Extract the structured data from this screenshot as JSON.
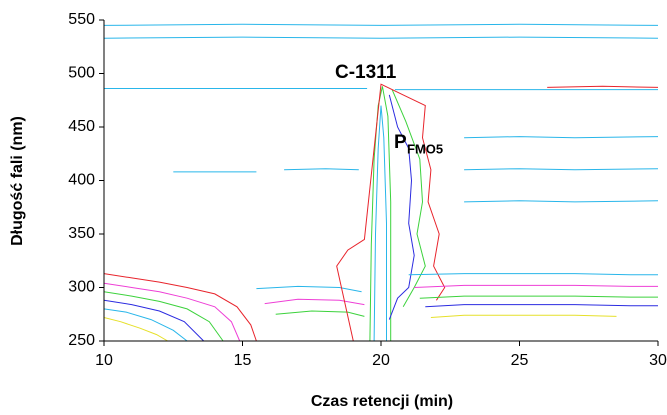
{
  "chart_data": {
    "type": "contour",
    "xlabel": "Czas retencji (min)",
    "ylabel": "Długość fali (nm)",
    "annotations": [
      {
        "text": "C-1311"
      },
      {
        "text": "P",
        "subscript": "FMO5"
      }
    ],
    "xlim": [
      10,
      30
    ],
    "xticks": [
      10,
      15,
      20,
      25,
      30
    ],
    "ylim": [
      250,
      550
    ],
    "yticks": [
      250,
      300,
      350,
      400,
      450,
      500,
      550
    ],
    "grid": false,
    "contours": [
      {
        "color": "#e8242c",
        "x": [
          10,
          11,
          12,
          13,
          14,
          14.8,
          15.3,
          15.5
        ],
        "y": [
          313,
          309,
          305,
          300,
          294,
          282,
          265,
          250
        ]
      },
      {
        "color": "#ee3fd6",
        "x": [
          10,
          11,
          12,
          13,
          14,
          14.6,
          14.9
        ],
        "y": [
          304,
          300,
          296,
          290,
          282,
          268,
          250
        ]
      },
      {
        "color": "#3cd23c",
        "x": [
          10,
          11,
          12,
          13,
          13.8,
          14.3
        ],
        "y": [
          296,
          292,
          287,
          280,
          268,
          250
        ]
      },
      {
        "color": "#2b2be0",
        "x": [
          10,
          11,
          12,
          12.9,
          13.6
        ],
        "y": [
          288,
          284,
          278,
          268,
          250
        ]
      },
      {
        "color": "#29b6ea",
        "x": [
          10,
          10.8,
          11.7,
          12.5,
          13
        ],
        "y": [
          280,
          277,
          270,
          260,
          250
        ]
      },
      {
        "color": "#e6e02a",
        "x": [
          10,
          10.6,
          11.3,
          11.9,
          12.3
        ],
        "y": [
          272,
          268,
          262,
          256,
          250
        ]
      },
      {
        "color": "#29b6ea",
        "x": [
          15.5,
          17,
          18.5,
          19.3
        ],
        "y": [
          299,
          301,
          300,
          296
        ]
      },
      {
        "color": "#ee3fd6",
        "x": [
          15.8,
          17,
          18.5,
          19.4
        ],
        "y": [
          285,
          289,
          288,
          284
        ]
      },
      {
        "color": "#3cd23c",
        "x": [
          16.2,
          17.5,
          18.8,
          19.4
        ],
        "y": [
          275,
          278,
          277,
          273
        ]
      },
      {
        "color": "#3cd23c",
        "x": [
          19.6,
          19.65,
          19.75,
          19.9,
          20.05,
          20.25,
          20.35,
          20.35
        ],
        "y": [
          250,
          340,
          420,
          470,
          488,
          460,
          380,
          250
        ]
      },
      {
        "color": "#29b6ea",
        "x": [
          19.75,
          19.8,
          19.9,
          20.0,
          20.1,
          20.2,
          20.2
        ],
        "y": [
          250,
          350,
          430,
          470,
          440,
          360,
          250
        ]
      },
      {
        "color": "#2b2be0",
        "x": [
          20.3,
          20.6,
          21,
          21.1,
          21.0,
          21.2,
          21.0,
          20.6,
          20.3
        ],
        "y": [
          480,
          450,
          430,
          400,
          360,
          330,
          300,
          290,
          270
        ]
      },
      {
        "color": "#3cd23c",
        "x": [
          20.4,
          20.9,
          21.4,
          21.5,
          21.3,
          21.6,
          21.2,
          20.8
        ],
        "y": [
          485,
          455,
          420,
          380,
          350,
          320,
          300,
          282
        ]
      },
      {
        "color": "#e8242c",
        "x": [
          19.0,
          18.4,
          18.8,
          19.4,
          20.0,
          20.8,
          21.6,
          21.5,
          21.8,
          21.7,
          22.1,
          21.9,
          22.3,
          22.0
        ],
        "y": [
          250,
          320,
          335,
          345,
          490,
          480,
          470,
          440,
          410,
          380,
          350,
          320,
          300,
          288
        ]
      },
      {
        "color": "#29b6ea",
        "x": [
          21,
          23,
          25,
          27,
          29,
          30
        ],
        "y": [
          312,
          313,
          313,
          313,
          312,
          312
        ]
      },
      {
        "color": "#ee3fd6",
        "x": [
          21.2,
          23,
          25,
          27,
          29,
          30
        ],
        "y": [
          300,
          302,
          302,
          302,
          301,
          301
        ]
      },
      {
        "color": "#3cd23c",
        "x": [
          21.4,
          23,
          25,
          27,
          29,
          30
        ],
        "y": [
          290,
          292,
          292,
          292,
          291,
          291
        ]
      },
      {
        "color": "#2b2be0",
        "x": [
          21.6,
          23,
          25,
          27,
          29,
          30
        ],
        "y": [
          282,
          284,
          284,
          284,
          283,
          283
        ]
      },
      {
        "color": "#e6e02a",
        "x": [
          21.8,
          23,
          25,
          27,
          28.5
        ],
        "y": [
          272,
          274,
          274,
          274,
          273
        ]
      },
      {
        "color": "#29b6ea",
        "x": [
          10,
          14,
          18,
          19.5
        ],
        "y": [
          486,
          486,
          486,
          486
        ]
      },
      {
        "color": "#29b6ea",
        "x": [
          20.5,
          24,
          27,
          30
        ],
        "y": [
          485,
          485,
          485,
          485
        ]
      },
      {
        "color": "#e8242c",
        "x": [
          26,
          28,
          30
        ],
        "y": [
          487,
          488,
          487
        ]
      },
      {
        "color": "#29b6ea",
        "x": [
          10,
          15,
          20,
          25,
          30
        ],
        "y": [
          533,
          534,
          533,
          534,
          533
        ]
      },
      {
        "color": "#29b6ea",
        "x": [
          10,
          15,
          20,
          25,
          30
        ],
        "y": [
          545,
          546,
          545,
          546,
          545
        ]
      },
      {
        "color": "#29b6ea",
        "x": [
          23,
          25,
          27,
          30
        ],
        "y": [
          440,
          441,
          440,
          441
        ]
      },
      {
        "color": "#29b6ea",
        "x": [
          23,
          25,
          27,
          30
        ],
        "y": [
          410,
          411,
          410,
          411
        ]
      },
      {
        "color": "#29b6ea",
        "x": [
          23,
          25,
          27,
          30
        ],
        "y": [
          380,
          381,
          380,
          381
        ]
      },
      {
        "color": "#29b6ea",
        "x": [
          12.5,
          14,
          15.5
        ],
        "y": [
          408,
          408,
          408
        ]
      },
      {
        "color": "#29b6ea",
        "x": [
          16.5,
          18,
          19.2
        ],
        "y": [
          410,
          411,
          410
        ]
      }
    ]
  }
}
